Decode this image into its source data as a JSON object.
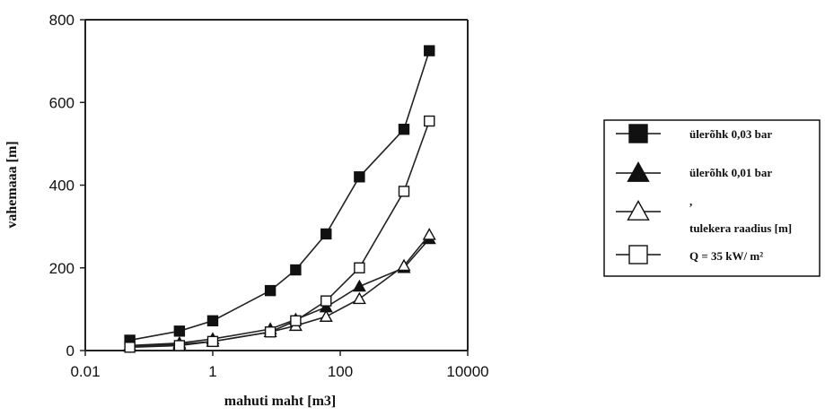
{
  "chart_data": {
    "type": "line",
    "xlabel": "mahuti maht [m3]",
    "ylabel": "vahemaaa [m]",
    "x_scale": "log",
    "xlim": [
      0.01,
      10000
    ],
    "ylim": [
      0,
      800
    ],
    "x_ticks": [
      0.01,
      1,
      100,
      10000
    ],
    "x_tick_labels": [
      "0.01",
      "1",
      "100",
      "10000"
    ],
    "y_ticks": [
      0,
      200,
      400,
      600,
      800
    ],
    "y_tick_labels": [
      "0",
      "200",
      "400",
      "600",
      "800"
    ],
    "grid": false,
    "legend_position": "right",
    "x": [
      0.05,
      0.3,
      1,
      8,
      20,
      60,
      200,
      1000,
      2500
    ],
    "series": [
      {
        "name": "ülerõhk 0,03 bar",
        "marker": "filled-square",
        "values": [
          25,
          47,
          72,
          145,
          195,
          282,
          420,
          535,
          725
        ]
      },
      {
        "name": "ülerõhk 0,01 bar",
        "marker": "filled-triangle",
        "values": [
          12,
          18,
          28,
          52,
          75,
          105,
          155,
          200,
          270
        ]
      },
      {
        "name": "tulekera raadius [m]",
        "marker": "open-triangle",
        "values": [
          10,
          15,
          22,
          45,
          60,
          82,
          125,
          205,
          280
        ]
      },
      {
        "name": "Q = 35 kW/ m²",
        "marker": "open-square",
        "values": [
          8,
          12,
          22,
          45,
          72,
          120,
          200,
          385,
          555
        ]
      }
    ],
    "legend_separator": ","
  }
}
